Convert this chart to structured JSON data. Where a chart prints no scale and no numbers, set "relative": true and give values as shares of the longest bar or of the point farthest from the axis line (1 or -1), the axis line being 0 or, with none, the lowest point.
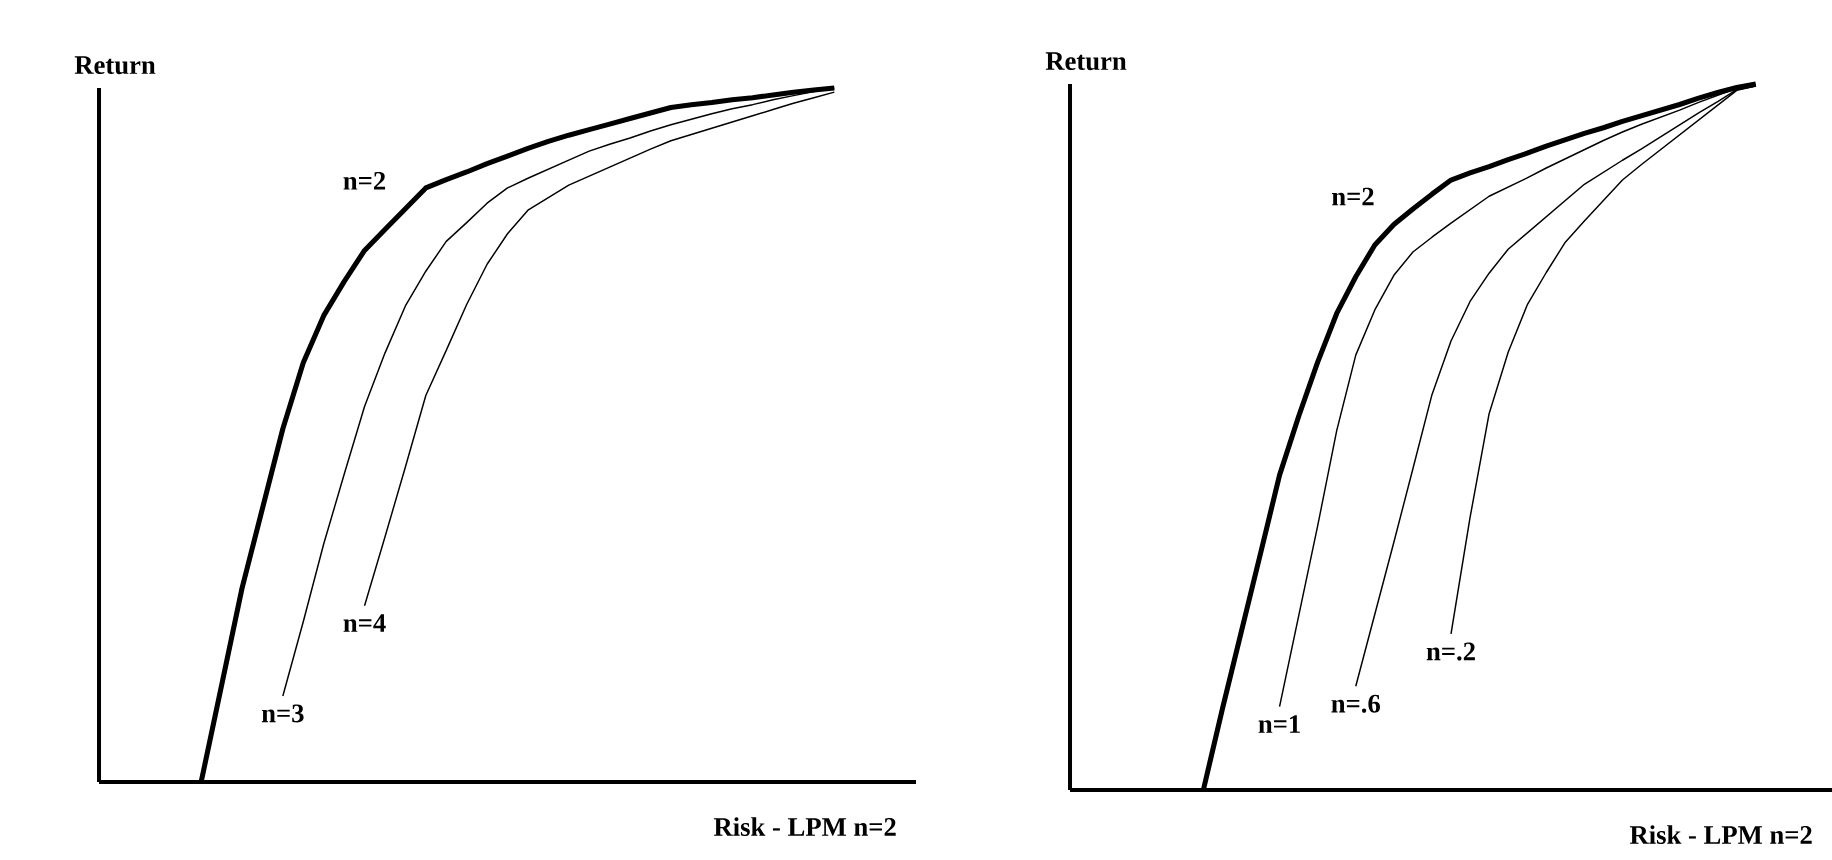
{
  "chart_data": [
    {
      "type": "line",
      "relative": true,
      "xlabel": "Risk - LPM n=2",
      "ylabel": "Return",
      "marker": "none",
      "line_style": "solid",
      "categories": [
        null,
        null,
        null,
        null,
        null,
        null,
        null,
        null,
        null,
        null,
        null,
        null,
        null,
        null,
        null,
        null,
        null,
        null,
        null,
        null,
        null,
        null,
        null,
        null,
        null,
        null,
        null,
        null,
        null,
        null,
        null,
        null,
        null,
        null,
        null,
        null,
        null,
        null,
        null,
        null,
        null
      ],
      "series": [
        {
          "name": "n=2",
          "color": "#000000",
          "values": [
            null,
            null,
            null,
            null,
            null,
            0,
            0.139,
            0.279,
            0.394,
            0.509,
            0.604,
            0.672,
            0.721,
            0.766,
            0.796,
            0.826,
            0.856,
            0.868,
            0.879,
            0.891,
            0.902,
            0.913,
            0.923,
            0.932,
            0.94,
            0.948,
            0.956,
            0.964,
            0.972,
            0.976,
            0.979,
            0.983,
            0.986,
            0.99,
            0.994,
            0.997,
            1.0,
            null,
            null,
            null,
            null
          ]
        },
        {
          "name": "n=3",
          "color": "#000000",
          "values": [
            null,
            null,
            null,
            null,
            null,
            null,
            null,
            null,
            null,
            0.124,
            0.231,
            0.343,
            0.443,
            0.541,
            0.618,
            0.686,
            0.736,
            0.779,
            0.806,
            0.834,
            0.856,
            0.87,
            0.883,
            0.896,
            0.909,
            0.919,
            0.928,
            0.938,
            0.947,
            0.955,
            0.963,
            0.97,
            0.976,
            0.983,
            0.989,
            0.995,
            1.0,
            null,
            null,
            null,
            null
          ]
        },
        {
          "name": "n=4",
          "color": "#000000",
          "values": [
            null,
            null,
            null,
            null,
            null,
            null,
            null,
            null,
            null,
            null,
            null,
            null,
            null,
            0.254,
            0.353,
            0.454,
            0.557,
            0.622,
            0.688,
            0.746,
            0.79,
            0.824,
            0.842,
            0.86,
            0.873,
            0.886,
            0.899,
            0.912,
            0.924,
            0.933,
            0.942,
            0.951,
            0.96,
            0.969,
            0.978,
            0.986,
            0.994,
            null,
            null,
            null,
            null
          ]
        }
      ]
    },
    {
      "type": "line",
      "relative": true,
      "xlabel": "Risk - LPM n=2",
      "ylabel": "Return",
      "marker": "none",
      "line_style": "solid",
      "categories": [
        null,
        null,
        null,
        null,
        null,
        null,
        null,
        null,
        null,
        null,
        null,
        null,
        null,
        null,
        null,
        null,
        null,
        null,
        null,
        null,
        null,
        null,
        null,
        null,
        null,
        null,
        null,
        null,
        null,
        null,
        null,
        null,
        null,
        null,
        null,
        null,
        null,
        null,
        null,
        null,
        null
      ],
      "series": [
        {
          "name": "n=2",
          "color": "#000000",
          "values": [
            null,
            null,
            null,
            null,
            null,
            null,
            null,
            0,
            0.115,
            0.225,
            0.335,
            0.446,
            0.529,
            0.606,
            0.675,
            0.727,
            0.772,
            0.801,
            0.823,
            0.844,
            0.864,
            0.874,
            0.883,
            0.893,
            0.902,
            0.912,
            0.921,
            0.93,
            0.938,
            0.947,
            0.955,
            0.963,
            0.971,
            0.98,
            0.988,
            0.995,
            1.0,
            null,
            null,
            null,
            null
          ]
        },
        {
          "name": "n=1",
          "color": "#000000",
          "values": [
            null,
            null,
            null,
            null,
            null,
            null,
            null,
            null,
            null,
            null,
            null,
            0.118,
            0.246,
            0.374,
            0.509,
            0.616,
            0.68,
            0.729,
            0.762,
            0.783,
            0.803,
            0.822,
            0.841,
            0.854,
            0.867,
            0.881,
            0.894,
            0.907,
            0.92,
            0.932,
            0.943,
            0.953,
            0.963,
            0.974,
            0.984,
            0.994,
            0.997,
            null,
            null,
            null,
            null
          ]
        },
        {
          "name": "n=.6",
          "color": "#000000",
          "values": [
            null,
            null,
            null,
            null,
            null,
            null,
            null,
            null,
            null,
            null,
            null,
            null,
            null,
            null,
            null,
            0.147,
            0.249,
            0.351,
            0.455,
            0.56,
            0.636,
            0.692,
            0.732,
            0.766,
            0.789,
            0.812,
            0.835,
            0.858,
            0.875,
            0.892,
            0.908,
            0.925,
            0.942,
            0.959,
            0.975,
            0.992,
            0.997,
            null,
            null,
            null,
            null
          ]
        },
        {
          "name": "n=.2",
          "color": "#000000",
          "values": [
            null,
            null,
            null,
            null,
            null,
            null,
            null,
            null,
            null,
            null,
            null,
            null,
            null,
            null,
            null,
            null,
            null,
            null,
            null,
            null,
            0.221,
            0.386,
            0.533,
            0.62,
            0.687,
            0.733,
            0.776,
            0.806,
            0.835,
            0.864,
            0.886,
            0.907,
            0.928,
            0.949,
            0.97,
            0.991,
            0.997,
            null,
            null,
            null,
            null
          ]
        }
      ]
    }
  ]
}
